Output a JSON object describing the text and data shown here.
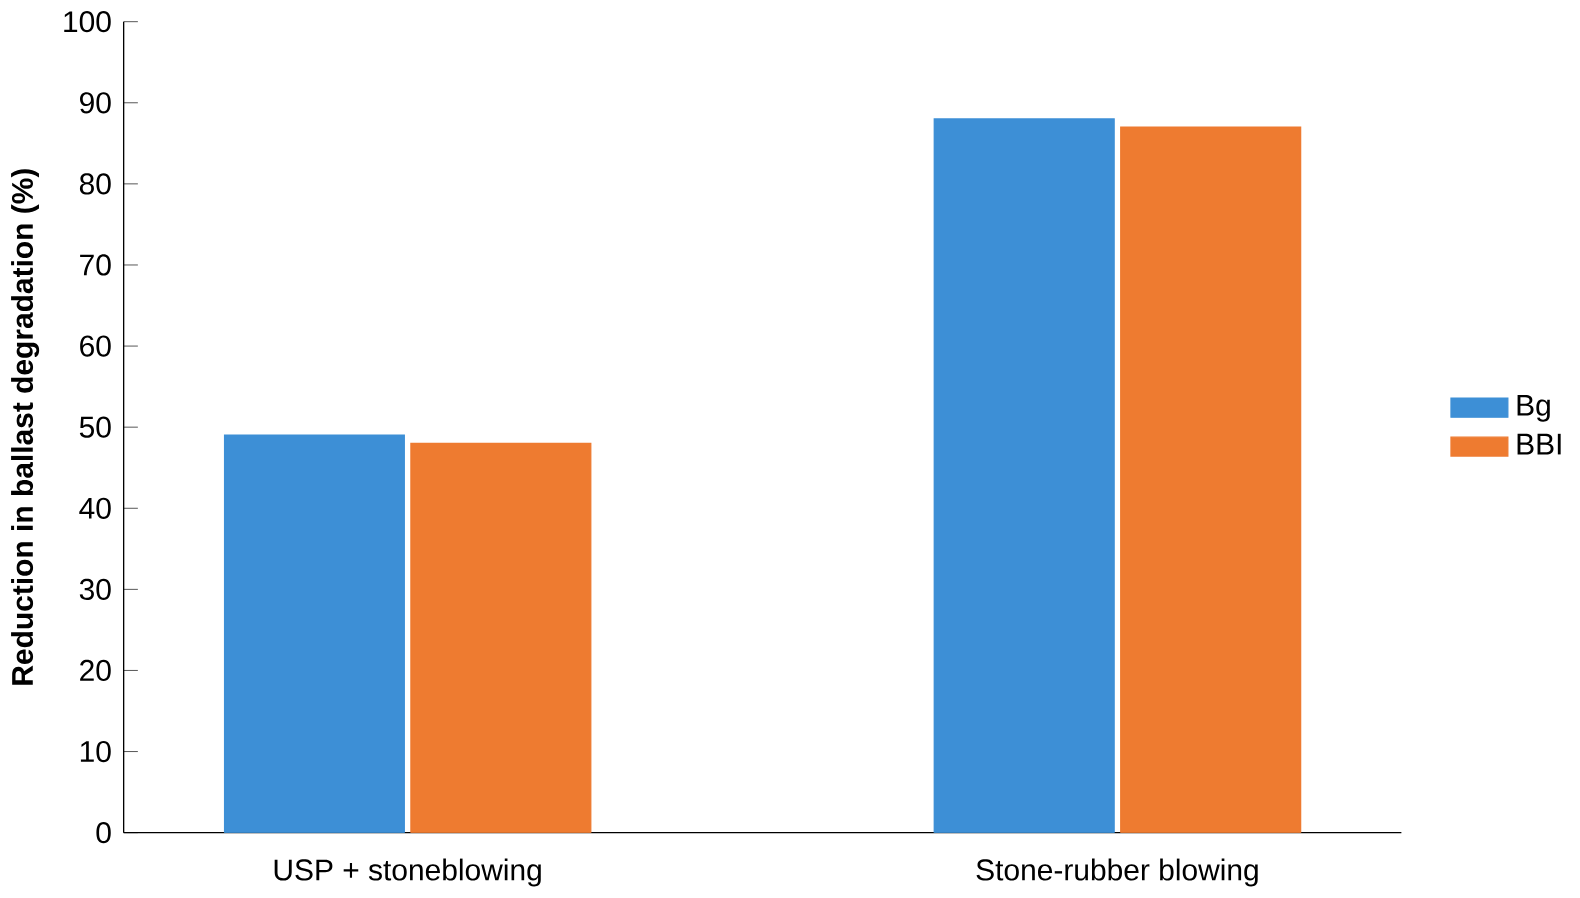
{
  "chart_data": {
    "type": "bar",
    "ylabel": "Reduction in ballast degradation (%)",
    "categories": [
      "USP + stoneblowing",
      "Stone-rubber blowing"
    ],
    "series": [
      {
        "name": "Bg",
        "color": "#3d8fd6",
        "values": [
          49,
          88
        ]
      },
      {
        "name": "BBI",
        "color": "#ee7b30",
        "values": [
          48,
          87
        ]
      }
    ],
    "ylim": [
      0,
      100
    ],
    "yticks": [
      0,
      10,
      20,
      30,
      40,
      50,
      60,
      70,
      80,
      90,
      100
    ],
    "legend": "right",
    "grid": false
  }
}
